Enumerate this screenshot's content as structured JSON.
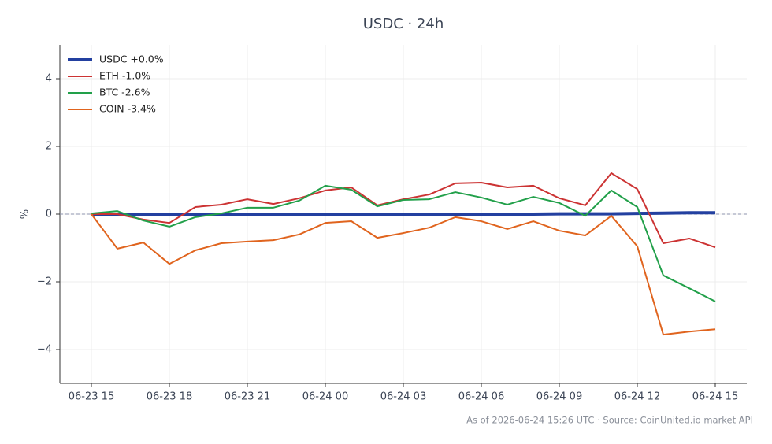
{
  "chart_data": {
    "type": "line",
    "title": "USDC · 24h",
    "y_label": "%",
    "footer": "As of 2026-06-24 15:26 UTC · Source: CoinUnited.io market API",
    "x": [
      "06-23 15",
      "06-23 16",
      "06-23 17",
      "06-23 18",
      "06-23 19",
      "06-23 20",
      "06-23 21",
      "06-23 22",
      "06-23 23",
      "06-24 00",
      "06-24 01",
      "06-24 02",
      "06-24 03",
      "06-24 04",
      "06-24 05",
      "06-24 06",
      "06-24 07",
      "06-24 08",
      "06-24 09",
      "06-24 10",
      "06-24 11",
      "06-24 12",
      "06-24 13",
      "06-24 14",
      "06-24 15"
    ],
    "xticks": [
      "06-23 15",
      "06-23 18",
      "06-23 21",
      "06-24 00",
      "06-24 03",
      "06-24 06",
      "06-24 09",
      "06-24 12",
      "06-24 15"
    ],
    "ylim": [
      -5,
      5
    ],
    "yticks": [
      {
        "value": -4,
        "label": "−4"
      },
      {
        "value": -2,
        "label": "−2"
      },
      0,
      2,
      4
    ],
    "grid": true,
    "reference_line": 0,
    "legend": "upper-left",
    "series": [
      {
        "name": "USDC +0.0%",
        "color": "#2340a0",
        "line_width": 4,
        "values": [
          0.0,
          0.0,
          0.0,
          0.0,
          0.0,
          0.0,
          0.0,
          0.0,
          0.0,
          0.0,
          0.0,
          0.0,
          0.0,
          0.0,
          0.0,
          0.0,
          0.0,
          0.0,
          0.01,
          0.01,
          0.01,
          0.02,
          0.03,
          0.04,
          0.04
        ]
      },
      {
        "name": "ETH -1.0%",
        "color": "#cc3333",
        "line_width": 2,
        "values": [
          0.0,
          0.0,
          -0.16,
          -0.26,
          0.21,
          0.28,
          0.44,
          0.3,
          0.47,
          0.7,
          0.79,
          0.26,
          0.44,
          0.58,
          0.91,
          0.93,
          0.79,
          0.84,
          0.47,
          0.26,
          1.21,
          0.74,
          -0.86,
          -0.72,
          -0.98
        ]
      },
      {
        "name": "BTC -2.6%",
        "color": "#22a04a",
        "line_width": 2,
        "values": [
          0.02,
          0.09,
          -0.19,
          -0.37,
          -0.09,
          0.02,
          0.19,
          0.19,
          0.4,
          0.84,
          0.72,
          0.23,
          0.42,
          0.44,
          0.65,
          0.49,
          0.28,
          0.51,
          0.33,
          -0.05,
          0.7,
          0.21,
          -1.81,
          -2.19,
          -2.58
        ]
      },
      {
        "name": "COIN -3.4%",
        "color": "#e0641e",
        "line_width": 2,
        "values": [
          0.0,
          -1.02,
          -0.84,
          -1.47,
          -1.07,
          -0.86,
          -0.81,
          -0.77,
          -0.6,
          -0.26,
          -0.21,
          -0.7,
          -0.56,
          -0.4,
          -0.09,
          -0.21,
          -0.44,
          -0.21,
          -0.49,
          -0.63,
          -0.05,
          -0.95,
          -3.56,
          -3.47,
          -3.4
        ]
      }
    ]
  }
}
